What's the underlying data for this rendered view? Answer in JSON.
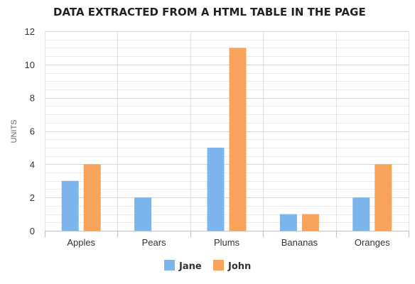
{
  "chart_data": {
    "type": "bar",
    "title": "DATA EXTRACTED FROM A HTML TABLE IN THE PAGE",
    "xlabel": "",
    "ylabel": "UNITS",
    "categories": [
      "Apples",
      "Pears",
      "Plums",
      "Bananas",
      "Oranges"
    ],
    "series": [
      {
        "name": "Jane",
        "values": [
          3,
          2,
          5,
          1,
          2
        ],
        "color": "#7cb5ec"
      },
      {
        "name": "John",
        "values": [
          4,
          0,
          11,
          1,
          4
        ],
        "color": "#f7a35c"
      }
    ],
    "ylim": [
      0,
      12
    ],
    "yticks": [
      0,
      2,
      4,
      6,
      8,
      10,
      12
    ],
    "grid": true,
    "legend": "bottom-center"
  }
}
